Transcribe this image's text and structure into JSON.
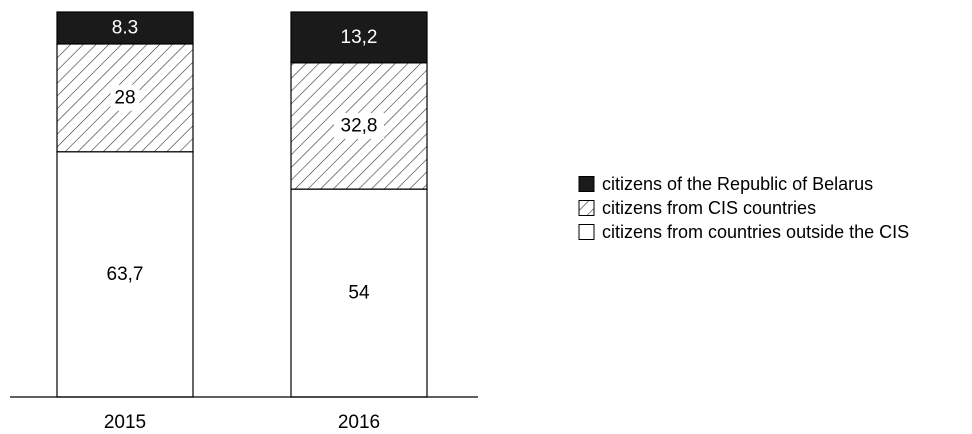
{
  "chart_data": {
    "type": "bar",
    "stacked": true,
    "categories": [
      "2015",
      "2016"
    ],
    "series": [
      {
        "name": "citizens from countries outside the CIS",
        "values": [
          63.7,
          54
        ],
        "labels": [
          "63,7",
          "54"
        ],
        "fill": "none",
        "color": "#ffffff"
      },
      {
        "name": "citizens from CIS countries",
        "values": [
          28,
          32.8
        ],
        "labels": [
          "28",
          "32,8"
        ],
        "fill": "hatch",
        "color": "#ffffff"
      },
      {
        "name": "citizens of the Republic of Belarus",
        "values": [
          8.3,
          13.2
        ],
        "labels": [
          "8.3",
          "13,2"
        ],
        "fill": "solid",
        "color": "#1a1a1a"
      }
    ],
    "legend_order": [
      2,
      1,
      0
    ],
    "ylim": [
      0,
      100
    ],
    "grid": false,
    "legend_position": "right",
    "title": "",
    "xlabel": "",
    "ylabel": ""
  }
}
